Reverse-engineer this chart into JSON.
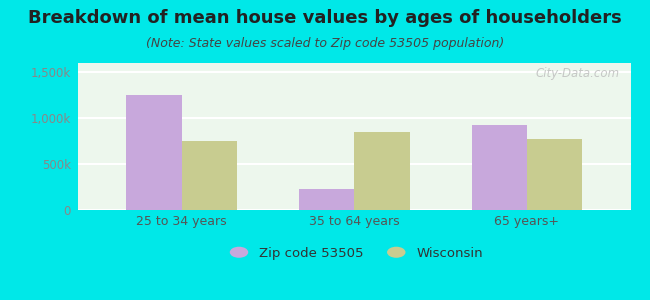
{
  "title": "Breakdown of mean house values by ages of householders",
  "subtitle": "(Note: State values scaled to Zip code 53505 population)",
  "categories": [
    "25 to 34 years",
    "35 to 64 years",
    "65 years+"
  ],
  "zip_values": [
    1250000,
    225000,
    925000
  ],
  "wi_values": [
    750000,
    850000,
    775000
  ],
  "zip_color": "#c8a8dc",
  "wi_color": "#c8cc90",
  "background_outer": "#00e8e8",
  "background_inner_top": "#e8f5e8",
  "background_inner_bottom": "#f8fff8",
  "ylim": [
    0,
    1600000
  ],
  "yticks": [
    0,
    500000,
    1000000,
    1500000
  ],
  "ytick_labels": [
    "0",
    "500k",
    "1,000k",
    "1,500k"
  ],
  "bar_width": 0.32,
  "legend_zip_label": "Zip code 53505",
  "legend_wi_label": "Wisconsin",
  "title_fontsize": 13,
  "subtitle_fontsize": 9,
  "watermark": "City-Data.com",
  "tick_color": "#888888",
  "label_color": "#555555"
}
